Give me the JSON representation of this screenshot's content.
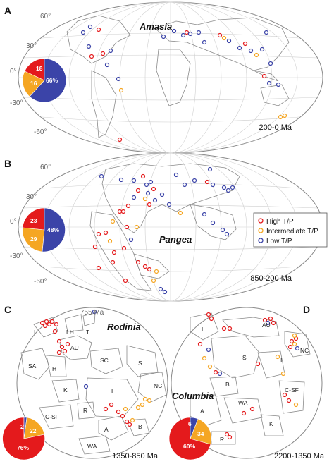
{
  "panels": {
    "A": {
      "letter": "A",
      "name": "Amasia",
      "age": "200-0 Ma",
      "lat_labels": [
        "60°",
        "30°",
        "0°",
        "-30°",
        "-60°"
      ],
      "pie": {
        "red": "18",
        "yellow": "16",
        "blue": "66%"
      }
    },
    "B": {
      "letter": "B",
      "name": "Pangea",
      "age": "850-200 Ma",
      "lat_labels": [
        "60°",
        "30°",
        "0°",
        "-30°",
        "-60°"
      ],
      "pie": {
        "red": "23",
        "yellow": "29",
        "blue": "48%"
      }
    },
    "C": {
      "letter": "C",
      "name": "Rodinia",
      "age": "1350-850 Ma",
      "note": "755 Ma",
      "pie": {
        "red": "76%",
        "yellow": "22",
        "blue": "2"
      },
      "cratons": [
        "I",
        "LH",
        "T",
        "AU",
        "SA",
        "H",
        "SC",
        "S",
        "K",
        "L",
        "NC",
        "C-SF",
        "R",
        "A",
        "B",
        "WA"
      ]
    },
    "D": {
      "letter": "D",
      "name": "Columbia",
      "age": "2200-1350 Ma",
      "pie": {
        "red": "60%",
        "yellow": "34",
        "blue": "6"
      },
      "cratons": [
        "L",
        "AU",
        "NC",
        "S",
        "I",
        "B",
        "C-SF",
        "A",
        "WA",
        "K",
        "R"
      ]
    }
  },
  "legend": {
    "items": [
      {
        "label": "High T/P",
        "color": "#e41a1c"
      },
      {
        "label": "Intermediate T/P",
        "color": "#f5a623"
      },
      {
        "label": "Low T/P",
        "color": "#3b44a8"
      }
    ]
  },
  "colors": {
    "high": "#e41a1c",
    "intermediate": "#f5a623",
    "low": "#3b44a8",
    "land": "#9a9a9a",
    "grid": "#c8c8c8"
  }
}
